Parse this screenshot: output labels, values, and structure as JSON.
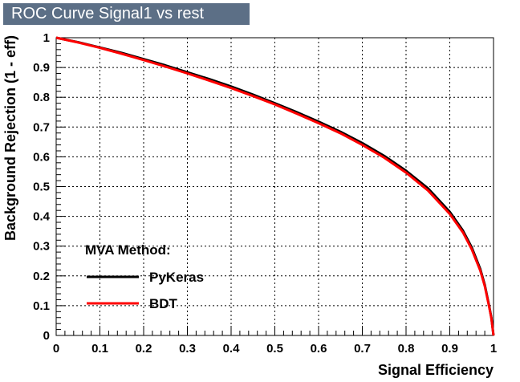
{
  "chart_data": {
    "type": "line",
    "title": "ROC Curve Signal1 vs rest",
    "xlabel": "Signal Efficiency",
    "ylabel": "Background Rejection (1 - eff)",
    "xlim": [
      0,
      1
    ],
    "ylim": [
      0,
      1
    ],
    "x_ticks": [
      0,
      0.1,
      0.2,
      0.3,
      0.4,
      0.5,
      0.6,
      0.7,
      0.8,
      0.9,
      1
    ],
    "x_tick_labels": [
      "0",
      "0.1",
      "0.2",
      "0.3",
      "0.4",
      "0.5",
      "0.6",
      "0.7",
      "0.8",
      "0.9",
      "1"
    ],
    "y_ticks": [
      0,
      0.1,
      0.2,
      0.3,
      0.4,
      0.5,
      0.6,
      0.7,
      0.8,
      0.9,
      1
    ],
    "y_tick_labels": [
      "0",
      "0.1",
      "0.2",
      "0.3",
      "0.4",
      "0.5",
      "0.6",
      "0.7",
      "0.8",
      "0.9",
      "1"
    ],
    "grid": true,
    "legend": {
      "title": "MVA Method:",
      "position": "bottom-left",
      "entries": [
        "PyKeras",
        "BDT"
      ]
    },
    "series": [
      {
        "name": "PyKeras",
        "color": "#000000",
        "x": [
          0,
          0.05,
          0.1,
          0.15,
          0.2,
          0.25,
          0.3,
          0.35,
          0.4,
          0.45,
          0.5,
          0.55,
          0.6,
          0.65,
          0.7,
          0.75,
          0.8,
          0.85,
          0.9,
          0.93,
          0.95,
          0.97,
          0.98,
          0.99,
          0.995,
          1.0
        ],
        "y": [
          1.0,
          0.985,
          0.967,
          0.949,
          0.928,
          0.907,
          0.884,
          0.861,
          0.836,
          0.809,
          0.78,
          0.75,
          0.718,
          0.684,
          0.646,
          0.603,
          0.553,
          0.494,
          0.415,
          0.352,
          0.296,
          0.222,
          0.17,
          0.1,
          0.06,
          0.0
        ]
      },
      {
        "name": "BDT",
        "color": "#ff0000",
        "x": [
          0,
          0.05,
          0.1,
          0.15,
          0.2,
          0.25,
          0.3,
          0.35,
          0.4,
          0.45,
          0.5,
          0.55,
          0.6,
          0.65,
          0.7,
          0.75,
          0.8,
          0.85,
          0.9,
          0.93,
          0.95,
          0.97,
          0.98,
          0.99,
          0.995,
          1.0
        ],
        "y": [
          1.0,
          0.984,
          0.966,
          0.946,
          0.925,
          0.903,
          0.88,
          0.856,
          0.831,
          0.804,
          0.776,
          0.745,
          0.713,
          0.679,
          0.64,
          0.597,
          0.547,
          0.487,
          0.408,
          0.346,
          0.29,
          0.217,
          0.166,
          0.097,
          0.058,
          0.0
        ]
      }
    ]
  }
}
